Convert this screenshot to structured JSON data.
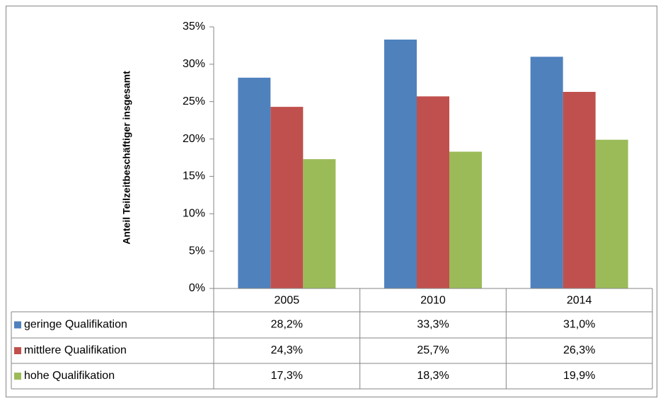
{
  "chart_data": {
    "type": "bar",
    "y_axis_label": "Anteil Teilzeitbeschäftiger insgesamt",
    "categories": [
      "2005",
      "2010",
      "2014"
    ],
    "series": [
      {
        "name": "geringe Qualifikation",
        "color": "#4f81bd",
        "values": [
          28.2,
          33.3,
          31.0
        ],
        "value_labels": [
          "28,2%",
          "33,3%",
          "31,0%"
        ]
      },
      {
        "name": "mittlere Qualifikation",
        "color": "#c0504d",
        "values": [
          24.3,
          25.7,
          26.3
        ],
        "value_labels": [
          "24,3%",
          "25,7%",
          "26,3%"
        ]
      },
      {
        "name": "hohe Qualifikation",
        "color": "#9bbb59",
        "values": [
          17.3,
          18.3,
          19.9
        ],
        "value_labels": [
          "17,3%",
          "18,3%",
          "19,9%"
        ]
      }
    ],
    "ylim": [
      0,
      35
    ],
    "yticks": [
      {
        "value": 0,
        "label": "0%"
      },
      {
        "value": 5,
        "label": "5%"
      },
      {
        "value": 10,
        "label": "10%"
      },
      {
        "value": 15,
        "label": "15%"
      },
      {
        "value": 20,
        "label": "20%"
      },
      {
        "value": 25,
        "label": "25%"
      },
      {
        "value": 30,
        "label": "30%"
      },
      {
        "value": 35,
        "label": "35%"
      }
    ],
    "grid": false,
    "legend": "data-table"
  }
}
